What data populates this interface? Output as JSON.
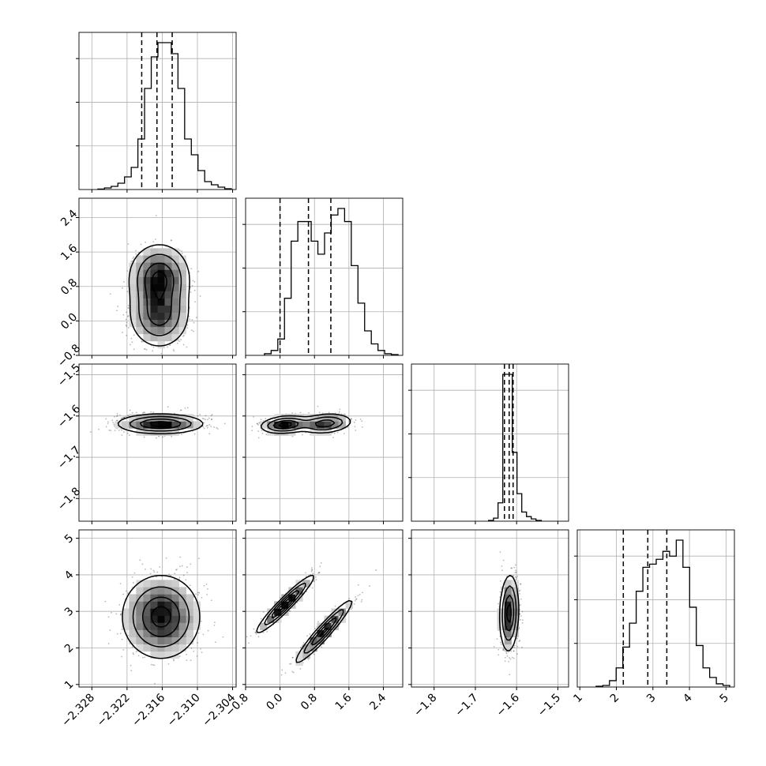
{
  "chart_data": {
    "type": "corner",
    "parameters": [
      {
        "range": [
          -2.3302,
          -2.3034
        ],
        "ticks": [
          -2.328,
          -2.322,
          -2.316,
          -2.31,
          -2.304
        ],
        "tick_labels": [
          "−2.328",
          "−2.322",
          "−2.316",
          "−2.310",
          "−2.304"
        ]
      },
      {
        "range": [
          -0.8,
          2.85
        ],
        "ticks": [
          -0.8,
          0.0,
          0.8,
          1.6,
          2.4
        ],
        "tick_labels": [
          "−0.8",
          "0.0",
          "0.8",
          "1.6",
          "2.4"
        ]
      },
      {
        "range": [
          -1.855,
          -1.474
        ],
        "ticks": [
          -1.8,
          -1.7,
          -1.6,
          -1.5
        ],
        "tick_labels": [
          "−1.8",
          "−1.7",
          "−1.6",
          "−1.5"
        ]
      },
      {
        "range": [
          0.93,
          5.23
        ],
        "ticks": [
          1,
          2,
          3,
          4,
          5
        ],
        "tick_labels": [
          "1",
          "2",
          "3",
          "4",
          "5"
        ]
      }
    ],
    "histograms": [
      {
        "counts": [
          0.3,
          1,
          2,
          4,
          8,
          14,
          32,
          64,
          84,
          93,
          93,
          86,
          64,
          32,
          22,
          12,
          5,
          3,
          1.5,
          0.5
        ],
        "quantiles": [
          -2.3195,
          -2.3169,
          -2.3143
        ]
      },
      {
        "counts": [
          1,
          3,
          10,
          35,
          70,
          82,
          82,
          70,
          62,
          75,
          86,
          90,
          82,
          55,
          32,
          15,
          7,
          3,
          1,
          0.5
        ],
        "quantiles": [
          0.0,
          0.66,
          1.18
        ]
      },
      {
        "counts": [
          0.5,
          2,
          12,
          96,
          96,
          45,
          18,
          6,
          3,
          1.5,
          0.5
        ],
        "edges": [
          -1.668,
          -1.656,
          -1.645,
          -1.6335,
          -1.622,
          -1.6105,
          -1.599,
          -1.5875,
          -1.576,
          -1.5645,
          -1.553,
          -1.54
        ],
        "quantiles": [
          -1.6295,
          -1.618,
          -1.6085
        ]
      },
      {
        "counts": [
          0.5,
          1,
          4,
          12,
          25,
          40,
          60,
          75,
          77,
          80,
          85,
          82,
          92,
          75,
          50,
          26,
          12,
          6,
          2,
          1
        ],
        "quantiles": [
          2.19,
          2.86,
          3.38
        ]
      }
    ],
    "contour_pairs": [
      {
        "x": 0,
        "y": 1,
        "modes": [
          {
            "cx": -2.3165,
            "cy": 1.0,
            "sx": 0.0025,
            "sy": 0.38,
            "rho": 0.0,
            "w": 0.55
          },
          {
            "cx": -2.3165,
            "cy": 0.15,
            "sx": 0.0025,
            "sy": 0.38,
            "rho": 0.0,
            "w": 0.45
          }
        ]
      },
      {
        "x": 0,
        "y": 2,
        "modes": [
          {
            "cx": -2.3163,
            "cy": -1.619,
            "sx": 0.0035,
            "sy": 0.0115,
            "rho": 0.0,
            "w": 1.0
          }
        ]
      },
      {
        "x": 1,
        "y": 2,
        "modes": [
          {
            "cx": 0.12,
            "cy": -1.621,
            "sx": 0.27,
            "sy": 0.01,
            "rho": 0.2,
            "w": 0.5
          },
          {
            "cx": 1.05,
            "cy": -1.618,
            "sx": 0.3,
            "sy": 0.0115,
            "rho": 0.2,
            "w": 0.5
          }
        ]
      },
      {
        "x": 0,
        "y": 3,
        "modes": [
          {
            "cx": -2.3162,
            "cy": 2.85,
            "sx": 0.0032,
            "sy": 0.55,
            "rho": 0.0,
            "w": 1.0
          }
        ]
      },
      {
        "x": 1,
        "y": 3,
        "modes": [
          {
            "cx": 0.12,
            "cy": 3.2,
            "sx": 0.32,
            "sy": 0.38,
            "rho": 0.95,
            "w": 0.5
          },
          {
            "cx": 1.02,
            "cy": 2.45,
            "sx": 0.32,
            "sy": 0.42,
            "rho": 0.95,
            "w": 0.5
          }
        ]
      },
      {
        "x": 2,
        "y": 3,
        "modes": [
          {
            "cx": -1.618,
            "cy": 2.95,
            "sx": 0.011,
            "sy": 0.5,
            "rho": 0.1,
            "w": 1.0
          }
        ]
      }
    ]
  }
}
